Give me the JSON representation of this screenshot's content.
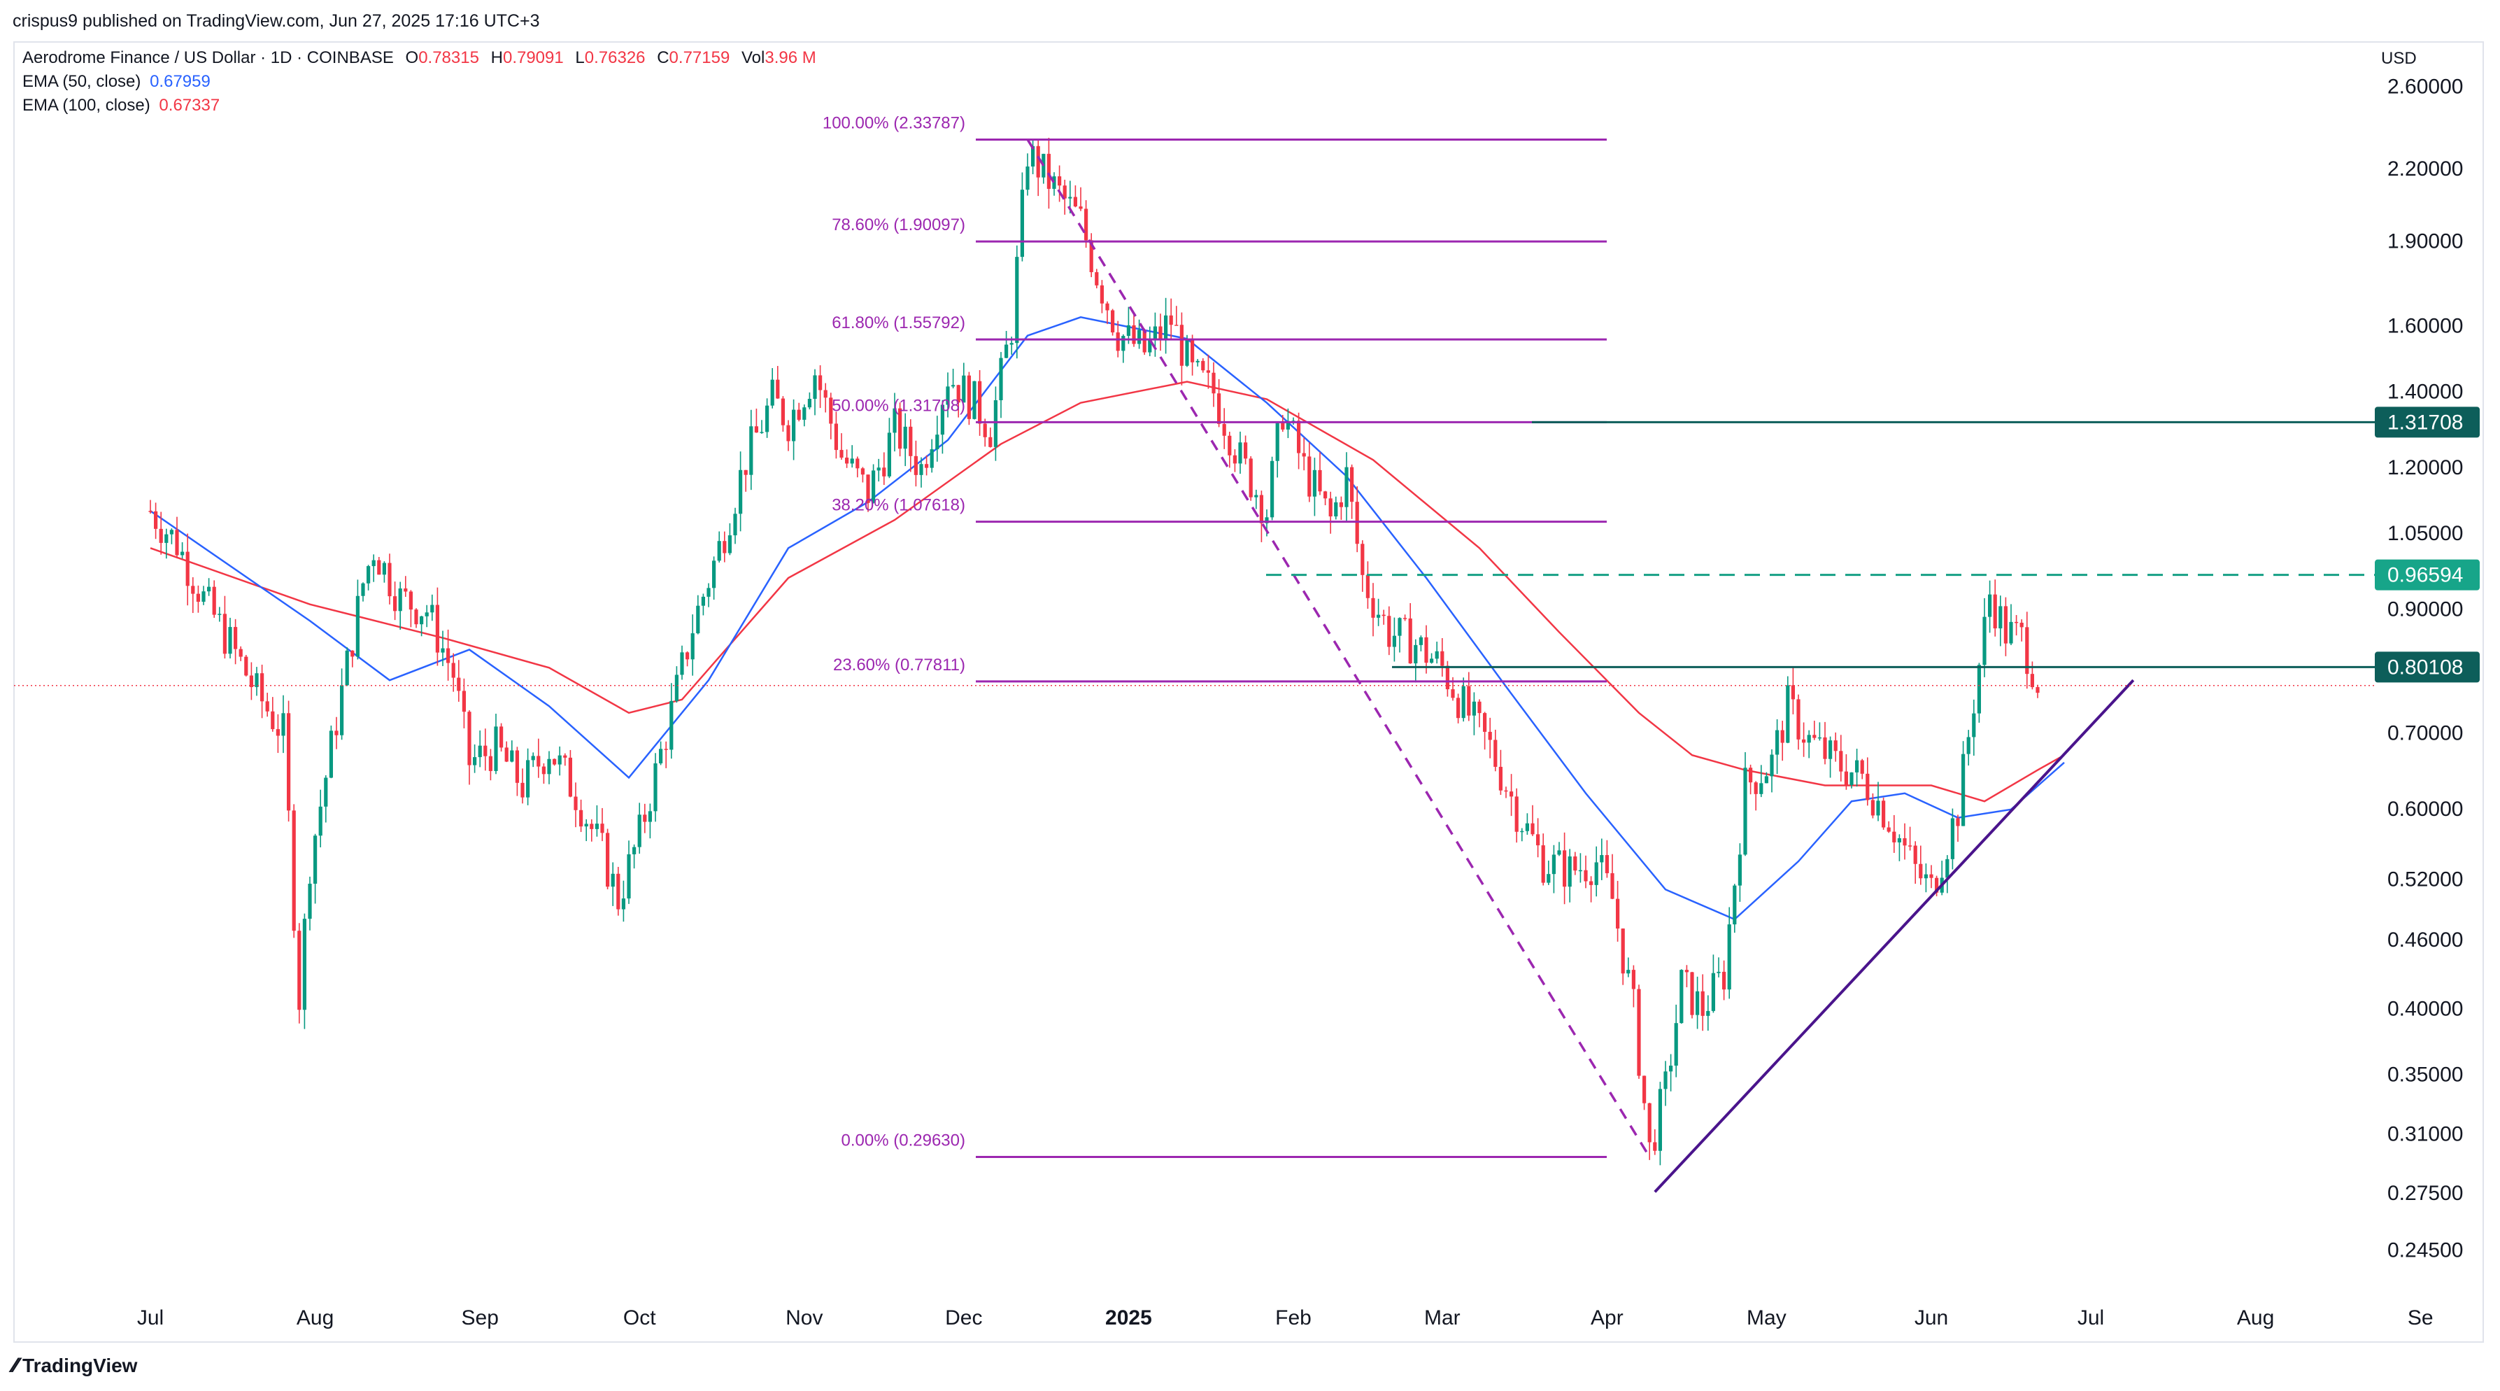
{
  "header": {
    "published": "crispus9 published on TradingView.com, Jun 27, 2025 17:16 UTC+3"
  },
  "legend": {
    "symbol": "Aerodrome Finance / US Dollar · 1D · COINBASE",
    "o_label": "O",
    "o": "0.78315",
    "h_label": "H",
    "h": "0.79091",
    "l_label": "L",
    "l": "0.76326",
    "c_label": "C",
    "c": "0.77159",
    "vol_label": "Vol",
    "vol": "3.96 M",
    "ema50_label": "EMA (50, close)",
    "ema50": "0.67959",
    "ema100_label": "EMA (100, close)",
    "ema100": "0.67337"
  },
  "currency": "USD",
  "brand": "TradingView",
  "colors": {
    "up": "#089981",
    "down": "#f23645",
    "ema50": "#2962ff",
    "ema100": "#f23645",
    "fib": "#9c27b0",
    "trend": "#4a148c",
    "level": "#0d5e5a",
    "grid": "#f0f3fa"
  },
  "chart_data": {
    "type": "candlestick",
    "scale": "log",
    "ylim": [
      0.228,
      2.85
    ],
    "y_ticks": [
      "2.60000",
      "2.20000",
      "1.90000",
      "1.60000",
      "1.40000",
      "1.20000",
      "1.05000",
      "0.90000",
      "0.70000",
      "0.60000",
      "0.52000",
      "0.46000",
      "0.40000",
      "0.35000",
      "0.31000",
      "0.27500",
      "0.24500"
    ],
    "x_ticks": [
      "Jul",
      "Aug",
      "Sep",
      "Oct",
      "Nov",
      "Dec",
      "2025",
      "Feb",
      "Mar",
      "Apr",
      "May",
      "Jun",
      "Jul",
      "Aug",
      "Se"
    ],
    "fibonacci": [
      {
        "label": "100.00% (2.33787)",
        "value": 2.33787
      },
      {
        "label": "78.60% (1.90097)",
        "value": 1.90097
      },
      {
        "label": "61.80% (1.55792)",
        "value": 1.55792
      },
      {
        "label": "50.00% (1.31708)",
        "value": 1.31708
      },
      {
        "label": "38.20% (1.07618)",
        "value": 1.07618
      },
      {
        "label": "23.60% (0.77811)",
        "value": 0.77811
      },
      {
        "label": "0.00% (0.29630)",
        "value": 0.2963
      }
    ],
    "price_tags": [
      {
        "label": "1.31708",
        "value": 1.31708,
        "style": "solid"
      },
      {
        "label": "0.96594",
        "value": 0.96594,
        "style": "dashed"
      },
      {
        "label": "0.80108",
        "value": 0.80108,
        "style": "solid"
      }
    ],
    "last_price": 0.77159,
    "trendline": [
      {
        "date_index": 283,
        "value": 0.276
      },
      {
        "date_index": 373,
        "value": 0.78
      }
    ],
    "fib_retrace_line": [
      {
        "date_index": 165,
        "value": 2.33787
      },
      {
        "date_index": 282,
        "value": 0.2963
      }
    ],
    "ema50_points": [
      [
        0,
        1.1
      ],
      [
        30,
        0.88
      ],
      [
        45,
        0.78
      ],
      [
        60,
        0.83
      ],
      [
        75,
        0.74
      ],
      [
        90,
        0.64
      ],
      [
        105,
        0.78
      ],
      [
        120,
        1.02
      ],
      [
        135,
        1.12
      ],
      [
        150,
        1.27
      ],
      [
        165,
        1.57
      ],
      [
        175,
        1.63
      ],
      [
        195,
        1.56
      ],
      [
        210,
        1.37
      ],
      [
        225,
        1.18
      ],
      [
        240,
        0.96
      ],
      [
        255,
        0.77
      ],
      [
        270,
        0.62
      ],
      [
        285,
        0.51
      ],
      [
        298,
        0.48
      ],
      [
        310,
        0.54
      ],
      [
        320,
        0.61
      ],
      [
        330,
        0.62
      ],
      [
        340,
        0.59
      ],
      [
        350,
        0.6
      ],
      [
        360,
        0.66
      ]
    ],
    "ema100_points": [
      [
        0,
        1.02
      ],
      [
        30,
        0.91
      ],
      [
        55,
        0.85
      ],
      [
        75,
        0.8
      ],
      [
        90,
        0.73
      ],
      [
        100,
        0.75
      ],
      [
        120,
        0.96
      ],
      [
        140,
        1.08
      ],
      [
        160,
        1.26
      ],
      [
        175,
        1.37
      ],
      [
        195,
        1.43
      ],
      [
        210,
        1.38
      ],
      [
        230,
        1.22
      ],
      [
        250,
        1.02
      ],
      [
        265,
        0.86
      ],
      [
        280,
        0.73
      ],
      [
        290,
        0.67
      ],
      [
        300,
        0.65
      ],
      [
        315,
        0.63
      ],
      [
        335,
        0.63
      ],
      [
        345,
        0.61
      ],
      [
        355,
        0.65
      ],
      [
        360,
        0.67
      ]
    ],
    "price_path": [
      [
        0,
        1.1
      ],
      [
        5,
        1.03
      ],
      [
        10,
        0.92
      ],
      [
        15,
        0.84
      ],
      [
        20,
        0.76
      ],
      [
        25,
        0.7
      ],
      [
        28,
        0.41
      ],
      [
        30,
        0.54
      ],
      [
        35,
        0.72
      ],
      [
        40,
        0.95
      ],
      [
        42,
        1.02
      ],
      [
        47,
        0.92
      ],
      [
        52,
        0.9
      ],
      [
        57,
        0.79
      ],
      [
        60,
        0.66
      ],
      [
        65,
        0.68
      ],
      [
        70,
        0.63
      ],
      [
        75,
        0.68
      ],
      [
        80,
        0.62
      ],
      [
        85,
        0.55
      ],
      [
        88,
        0.5
      ],
      [
        92,
        0.57
      ],
      [
        97,
        0.7
      ],
      [
        102,
        0.87
      ],
      [
        107,
        1.02
      ],
      [
        112,
        1.22
      ],
      [
        117,
        1.38
      ],
      [
        120,
        1.32
      ],
      [
        125,
        1.46
      ],
      [
        130,
        1.23
      ],
      [
        135,
        1.14
      ],
      [
        140,
        1.3
      ],
      [
        145,
        1.2
      ],
      [
        150,
        1.45
      ],
      [
        155,
        1.37
      ],
      [
        158,
        1.3
      ],
      [
        162,
        1.6
      ],
      [
        165,
        2.28
      ],
      [
        170,
        2.12
      ],
      [
        175,
        1.98
      ],
      [
        178,
        1.78
      ],
      [
        182,
        1.58
      ],
      [
        187,
        1.52
      ],
      [
        192,
        1.62
      ],
      [
        196,
        1.45
      ],
      [
        200,
        1.4
      ],
      [
        205,
        1.22
      ],
      [
        210,
        1.1
      ],
      [
        213,
        1.35
      ],
      [
        217,
        1.2
      ],
      [
        222,
        1.08
      ],
      [
        225,
        1.18
      ],
      [
        228,
        0.96
      ],
      [
        233,
        0.86
      ],
      [
        238,
        0.84
      ],
      [
        243,
        0.8
      ],
      [
        247,
        0.74
      ],
      [
        252,
        0.68
      ],
      [
        257,
        0.6
      ],
      [
        262,
        0.54
      ],
      [
        267,
        0.53
      ],
      [
        272,
        0.54
      ],
      [
        275,
        0.5
      ],
      [
        279,
        0.4
      ],
      [
        282,
        0.3
      ],
      [
        285,
        0.34
      ],
      [
        288,
        0.42
      ],
      [
        292,
        0.4
      ],
      [
        296,
        0.43
      ],
      [
        300,
        0.63
      ],
      [
        305,
        0.66
      ],
      [
        308,
        0.74
      ],
      [
        312,
        0.69
      ],
      [
        317,
        0.66
      ],
      [
        322,
        0.64
      ],
      [
        327,
        0.59
      ],
      [
        332,
        0.53
      ],
      [
        335,
        0.51
      ],
      [
        340,
        0.6
      ],
      [
        343,
        0.75
      ],
      [
        346,
        0.93
      ],
      [
        349,
        0.86
      ],
      [
        352,
        0.85
      ],
      [
        355,
        0.78
      ]
    ]
  }
}
